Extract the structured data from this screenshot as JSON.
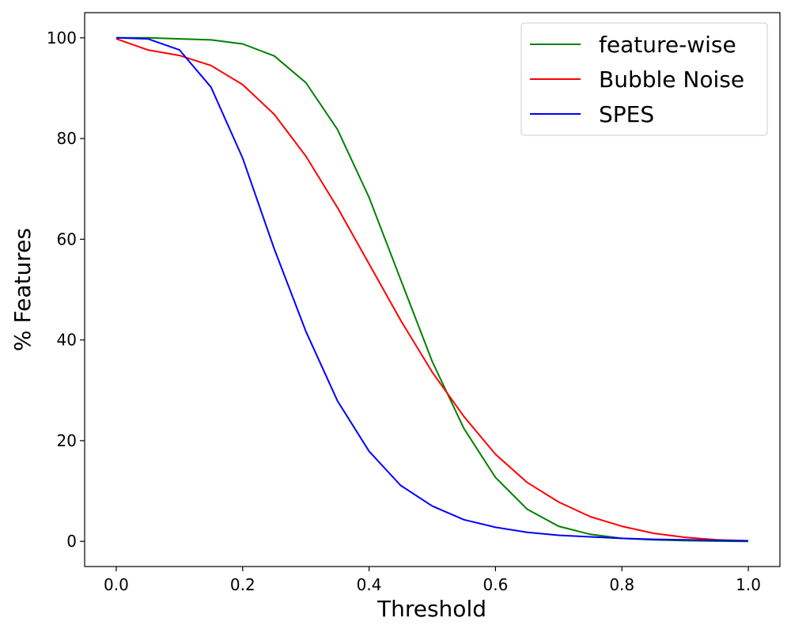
{
  "chart_data": {
    "type": "line",
    "title": "",
    "xlabel": "Threshold",
    "ylabel": "% Features",
    "xlim": [
      -0.05,
      1.05
    ],
    "ylim": [
      -5,
      105
    ],
    "grid": false,
    "legend_position": "top-right",
    "x_ticks": [
      "0.0",
      "0.2",
      "0.4",
      "0.6",
      "0.8",
      "1.0"
    ],
    "y_ticks": [
      "0",
      "20",
      "40",
      "60",
      "80",
      "100"
    ],
    "x": [
      0.0,
      0.05,
      0.1,
      0.15,
      0.2,
      0.25,
      0.3,
      0.35,
      0.4,
      0.45,
      0.5,
      0.55,
      0.6,
      0.65,
      0.7,
      0.75,
      0.8,
      0.85,
      0.9,
      0.95,
      1.0
    ],
    "series": [
      {
        "name": "feature-wise",
        "color": "#008000",
        "values": [
          100,
          100,
          99.8,
          99.6,
          98.8,
          96.4,
          91.1,
          81.8,
          68.3,
          52.0,
          35.7,
          22.4,
          12.7,
          6.4,
          3.0,
          1.4,
          0.6,
          0.3,
          0.15,
          0.05,
          0.0
        ]
      },
      {
        "name": "Bubble Noise",
        "color": "#ff0000",
        "values": [
          99.8,
          97.6,
          96.5,
          94.5,
          90.7,
          84.8,
          76.5,
          66.3,
          55.1,
          43.9,
          33.6,
          24.8,
          17.3,
          11.7,
          7.8,
          4.9,
          3.0,
          1.6,
          0.8,
          0.3,
          0.1
        ]
      },
      {
        "name": "SPES",
        "color": "#0000ff",
        "values": [
          100,
          99.8,
          97.6,
          90.2,
          76.1,
          58.1,
          41.7,
          27.9,
          17.9,
          11.1,
          7.0,
          4.3,
          2.8,
          1.8,
          1.2,
          0.9,
          0.6,
          0.4,
          0.3,
          0.2,
          0.1
        ]
      }
    ]
  }
}
